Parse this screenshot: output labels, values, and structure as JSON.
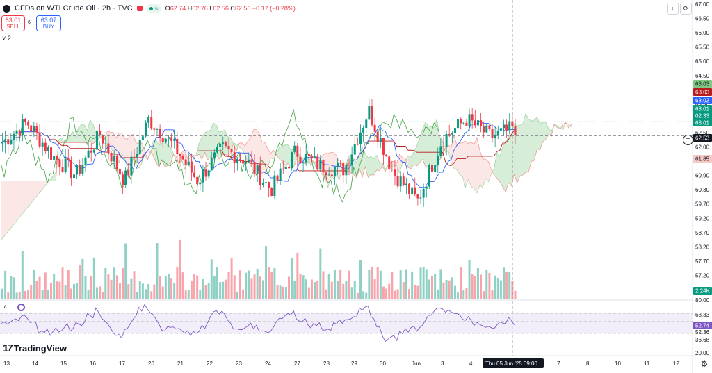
{
  "header": {
    "symbol_title": "CFDs on WTI Crude Oil · 2h · TVC",
    "indicator_pill": "≈",
    "ohlc": {
      "o_label": "O",
      "o": "62.74",
      "h_label": "H",
      "h": "62.76",
      "l_label": "L",
      "l": "62.56",
      "c_label": "C",
      "c": "62.56",
      "change": "−0.17 (−0.28%)"
    }
  },
  "trade": {
    "sell_price": "63.01",
    "sell_label": "SELL",
    "spread": "6",
    "buy_price": "63.07",
    "buy_label": "BUY"
  },
  "indicators_collapse": "˅ 2",
  "toolbar": {
    "down_icon": "↓",
    "fullscreen_icon": "⟳"
  },
  "brand": {
    "name": "TradingView",
    "mark": "17"
  },
  "colors": {
    "up": "#089981",
    "down": "#f23645",
    "cloud_up": "#a5d6a7",
    "cloud_down": "#f7c9c6",
    "base_line": "#b71c1c",
    "conv_line": "#2962ff",
    "lagging": "#43a047",
    "rsi": "#7e57c2"
  },
  "price_axis": {
    "ticks": [
      "67.00",
      "66.50",
      "66.00",
      "65.50",
      "65.00",
      "64.50",
      "64.00",
      "63.50",
      "63.00",
      "62.50",
      "62.00",
      "61.50",
      "60.90",
      "60.30",
      "59.70",
      "59.20",
      "58.70",
      "58.20",
      "57.70",
      "57.20"
    ],
    "labels": [
      {
        "text": "63.03",
        "color": "#81c784",
        "dark": false
      },
      {
        "text": "63.03",
        "color": "#b71c1c",
        "dark": false
      },
      {
        "text": "63.03",
        "color": "#2962ff",
        "dark": false
      },
      {
        "text": "63.01",
        "color": "#089981",
        "dark": false
      },
      {
        "text": "02:33",
        "color": "#089981",
        "dark": false
      },
      {
        "text": "63.01",
        "color": "#089981",
        "dark": false
      },
      {
        "text": "62.53",
        "color": "#131722",
        "dark": true
      },
      {
        "text": "61.85",
        "color": "#f7c9c6",
        "dark": false
      },
      {
        "text": "2.24K",
        "color": "#089981",
        "dark": false
      }
    ]
  },
  "rsi_axis": {
    "ticks": [
      "80.00",
      "63.33",
      "52.36",
      "36.68",
      "20.00"
    ],
    "current": "52.74"
  },
  "time_axis": {
    "ticks": [
      "13",
      "14",
      "15",
      "16",
      "17",
      "20",
      "21",
      "22",
      "23",
      "24",
      "27",
      "28",
      "29",
      "30",
      "Jun",
      "3",
      "4",
      "7",
      "8",
      "10",
      "11",
      "12",
      "13"
    ],
    "crosshair_label": "Thu 05 Jun '25   09:00"
  },
  "chart_data": {
    "type": "candlestick",
    "symbol": "CFDs on WTI Crude Oil",
    "interval": "2h",
    "ylim": [
      57.2,
      67.0
    ],
    "last_close": 62.56,
    "crosshair_price": 62.53,
    "rsi_levels": [
      80.0,
      63.33,
      52.36,
      36.68,
      20.0
    ],
    "rsi_current": 52.74,
    "volume_last": "2.24K"
  }
}
